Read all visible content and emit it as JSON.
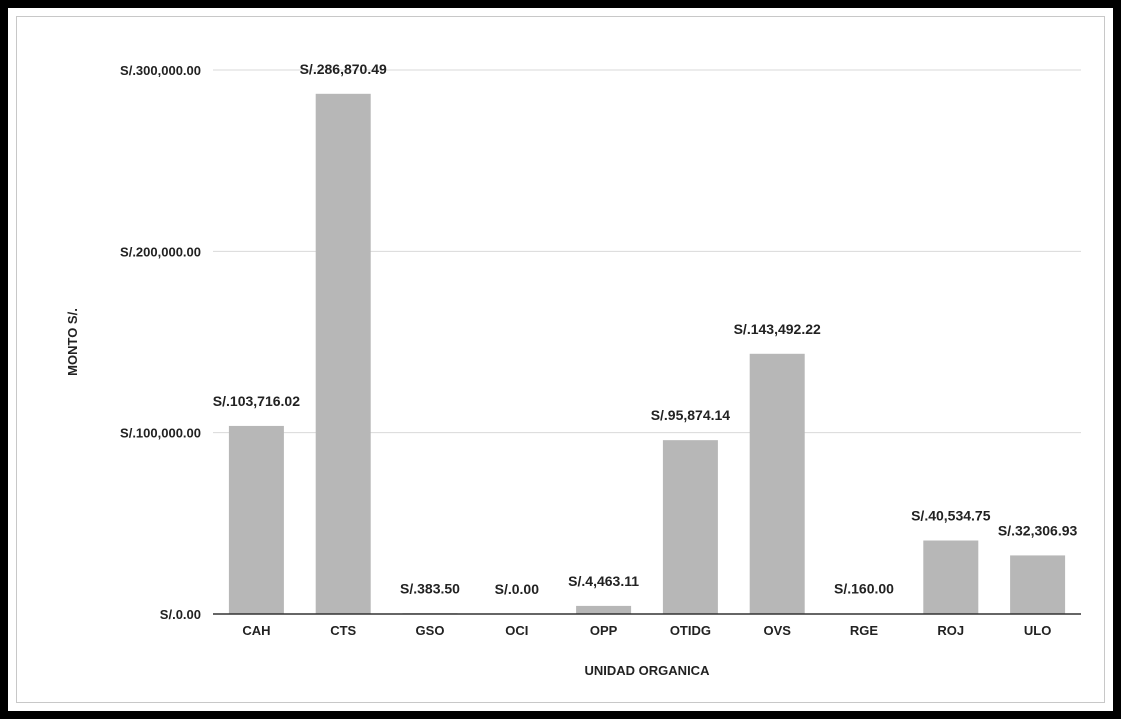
{
  "chart_data": {
    "type": "bar",
    "title": "",
    "xlabel": "UNIDAD ORGANICA",
    "ylabel": "MONTO S/.",
    "ylim": [
      0,
      300000
    ],
    "yticks": [
      {
        "value": 0,
        "label": "S/.0.00"
      },
      {
        "value": 100000,
        "label": "S/.100,000.00"
      },
      {
        "value": 200000,
        "label": "S/.200,000.00"
      },
      {
        "value": 300000,
        "label": "S/.300,000.00"
      }
    ],
    "categories": [
      "CAH",
      "CTS",
      "GSO",
      "OCI",
      "OPP",
      "OTIDG",
      "OVS",
      "RGE",
      "ROJ",
      "ULO"
    ],
    "values": [
      103716.02,
      286870.49,
      383.5,
      0.0,
      4463.11,
      95874.14,
      143492.22,
      160.0,
      40534.75,
      32306.93
    ],
    "data_labels": [
      "S/.103,716.02",
      "S/.286,870.49",
      "S/.383.50",
      "S/.0.00",
      "S/.4,463.11",
      "S/.95,874.14",
      "S/.143,492.22",
      "S/.160.00",
      "S/.40,534.75",
      "S/.32,306.93"
    ],
    "grid": true,
    "legend": "none",
    "colors": {
      "bar": "#b7b7b7",
      "grid": "#d9d9d9",
      "axis": "#333333",
      "text": "#222222"
    }
  }
}
